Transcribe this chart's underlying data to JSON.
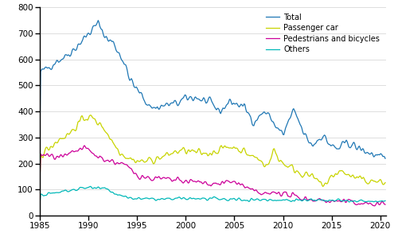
{
  "title": "",
  "xlabel": "",
  "ylabel": "",
  "xlim": [
    1985.0,
    2020.583
  ],
  "ylim": [
    0,
    800
  ],
  "yticks": [
    0,
    100,
    200,
    300,
    400,
    500,
    600,
    700,
    800
  ],
  "xticks": [
    1985,
    1990,
    1995,
    2000,
    2005,
    2010,
    2015,
    2020
  ],
  "colors": {
    "Total": "#1f77b4",
    "Passenger car": "#c8d400",
    "Pedestrians and bicycles": "#cc0099",
    "Others": "#00b8b8"
  },
  "legend_labels": [
    "Total",
    "Passenger car",
    "Pedestrians and bicycles",
    "Others"
  ],
  "grid_color": "#d8d8d8",
  "background_color": "#ffffff",
  "spine_color": "#000000",
  "figsize": [
    5.0,
    3.08
  ],
  "dpi": 100
}
